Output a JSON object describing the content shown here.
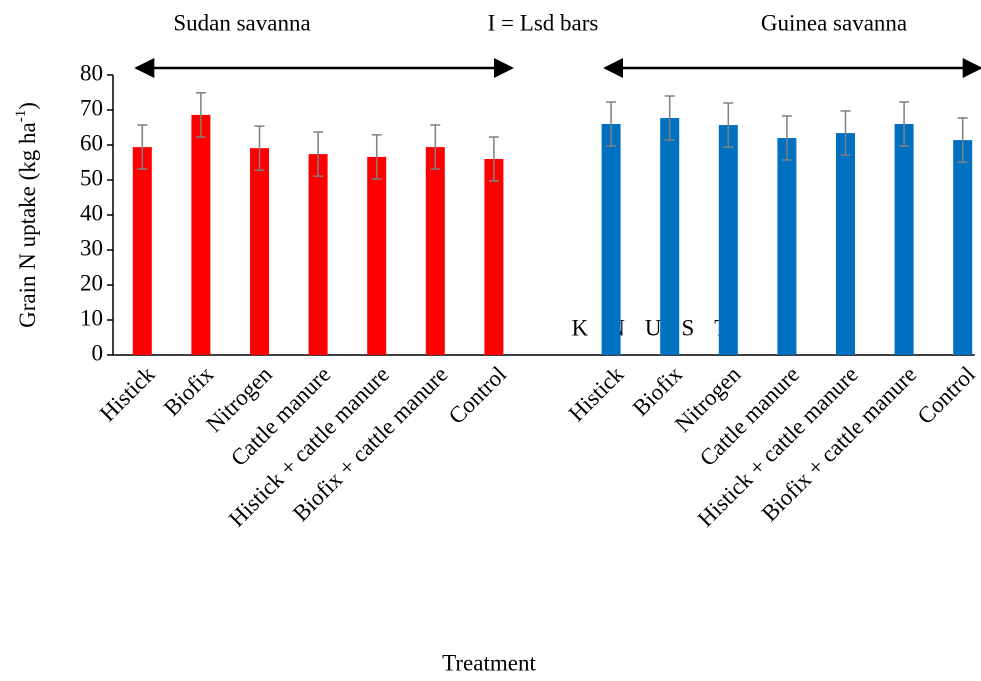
{
  "chart_data": {
    "type": "bar",
    "watermark": "KNUST",
    "annotation": "I = Lsd bars",
    "ylabel": {
      "text": "Grain N uptake (kg ha",
      "superscript": "-1",
      "suffix": ")"
    },
    "xlabel": "Treatment",
    "categories": [
      "Histick",
      "Biofix",
      "Nitrogen",
      "Cattle manure",
      "Histick +  cattle manure",
      "Biofix + cattle manure",
      "Control",
      null,
      "Histick",
      "Biofix",
      "Nitrogen",
      "Cattle manure",
      "Histick + cattle manure",
      "Biofix + cattle manure",
      "Control"
    ],
    "series": [
      {
        "name": "Sudan savanna",
        "color": "#ff0000",
        "values": [
          59.4,
          68.6,
          59.1,
          57.4,
          56.6,
          59.4,
          56.0,
          null,
          null,
          null,
          null,
          null,
          null,
          null,
          null
        ],
        "errors": [
          6.3,
          6.3,
          6.3,
          6.3,
          6.3,
          6.3,
          6.3,
          null,
          null,
          null,
          null,
          null,
          null,
          null,
          null
        ]
      },
      {
        "name": "Guinea savanna",
        "color": "#0070c0",
        "values": [
          null,
          null,
          null,
          null,
          null,
          null,
          null,
          null,
          66.0,
          67.7,
          65.7,
          62.0,
          63.4,
          66.0,
          61.4
        ],
        "errors": [
          null,
          null,
          null,
          null,
          null,
          null,
          null,
          null,
          6.3,
          6.3,
          6.3,
          6.3,
          6.3,
          6.3,
          6.3
        ]
      }
    ],
    "error_color": "#7f7f7f",
    "ylim": [
      0,
      80
    ],
    "yticks": [
      0,
      10,
      20,
      30,
      40,
      50,
      60,
      70,
      80
    ],
    "grid": false
  }
}
